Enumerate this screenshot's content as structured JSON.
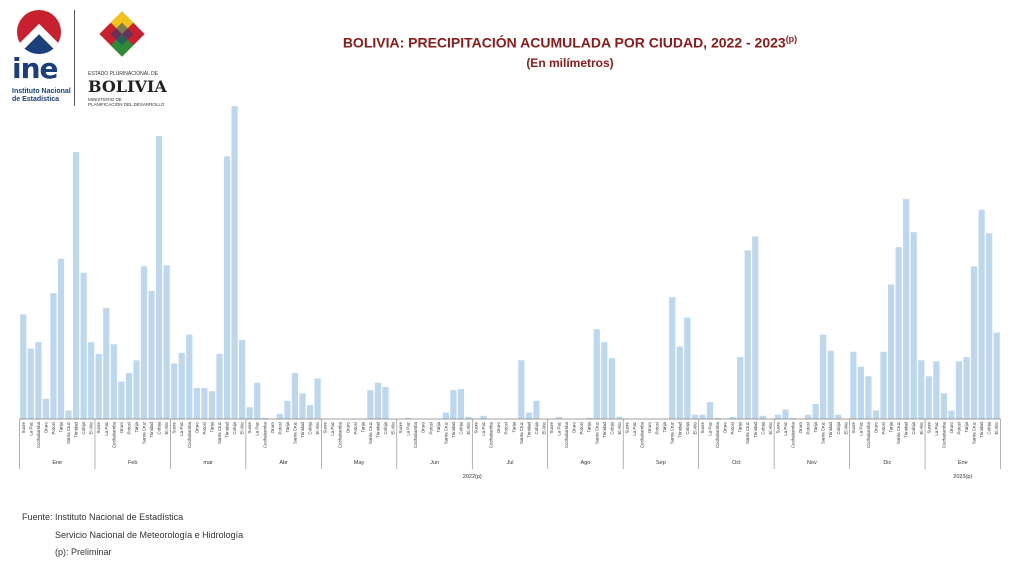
{
  "header": {
    "ine_logo_text": "ine",
    "ine_sub1": "Instituto Nacional",
    "ine_sub2": "de Estadística",
    "estado_text": "ESTADO PLURINACIONAL DE",
    "bolivia_text": "BOLIVIA",
    "ministerio_text1": "MINISTERIO DE",
    "ministerio_text2": "PLANIFICACIÓN DEL DESARROLLO"
  },
  "title_main": "BOLIVIA: PRECIPITACIÓN ACUMULADA POR CIUDAD, 2022 - 2023",
  "title_sup": "(p)",
  "subtitle": "(En milímetros)",
  "source": {
    "line1": "Fuente: Instituto Nacional de Estadística",
    "line2": "Servicio Nacional de Meteorología e Hidrología",
    "line3": "(p): Preliminar"
  },
  "colors": {
    "bar": "#bdd7ee",
    "title": "#8b1a1a",
    "axis": "#7f7f7f"
  },
  "chart_data": {
    "type": "bar",
    "cities": [
      "Sucre",
      "La Paz",
      "Cochabamba",
      "Oruro",
      "Potosí",
      "Tarija",
      "Santa Cruz",
      "Trinidad",
      "Cobija",
      "El Alto"
    ],
    "months": [
      "Ene",
      "Feb",
      "mar",
      "Abr",
      "May",
      "Jun",
      "Jul",
      "Ago",
      "Sep",
      "Oct",
      "Nov",
      "Dic",
      "Ene"
    ],
    "year_labels": [
      {
        "label": "2022(p)",
        "from_month": 0,
        "to_month": 11
      },
      {
        "label": "2023(p)",
        "from_month": 12,
        "to_month": 12
      }
    ],
    "values": [
      [
        98,
        66,
        72,
        19,
        118,
        150,
        8,
        250,
        137,
        72
      ],
      [
        61,
        104,
        70,
        35,
        43,
        55,
        143,
        120,
        265,
        144
      ],
      [
        52,
        62,
        79,
        29,
        29,
        26,
        61,
        246,
        293,
        74
      ],
      [
        11,
        34,
        1,
        0,
        5,
        17,
        43,
        24,
        13,
        38
      ],
      [
        0,
        0,
        0,
        0,
        0,
        0,
        27,
        34,
        30,
        0
      ],
      [
        0,
        1,
        0,
        0,
        0,
        0,
        6,
        27,
        28,
        2
      ],
      [
        0,
        3,
        0,
        0,
        0,
        0,
        55,
        6,
        17,
        0
      ],
      [
        0,
        2,
        0,
        0,
        0,
        1,
        84,
        72,
        57,
        2
      ],
      [
        0,
        0,
        0,
        0,
        0,
        0,
        114,
        68,
        95,
        4
      ],
      [
        4,
        16,
        1,
        0,
        2,
        58,
        158,
        171,
        3,
        0
      ],
      [
        4,
        9,
        1,
        0,
        4,
        14,
        79,
        64,
        4,
        0
      ],
      [
        63,
        49,
        40,
        8,
        63,
        126,
        161,
        206,
        175,
        55
      ],
      [
        40,
        54,
        24,
        8,
        54,
        58,
        143,
        196,
        174,
        81
      ]
    ],
    "ylim": [
      0,
      296
    ]
  }
}
